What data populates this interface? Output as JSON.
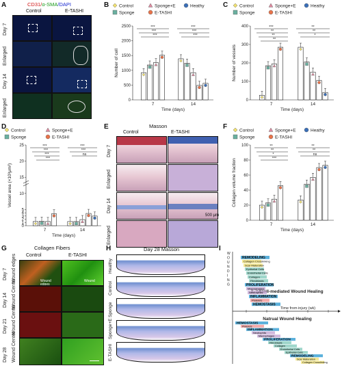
{
  "panels": {
    "A": "A",
    "B": "B",
    "C": "C",
    "D": "D",
    "E": "E",
    "F": "F",
    "G": "G",
    "H": "H",
    "I": "I"
  },
  "A": {
    "title_parts": [
      "CD31/",
      "α-SMA",
      "/DAPI"
    ],
    "title_colors": [
      "#d11a1a",
      "#1a9a1a",
      "#1a2ad1"
    ],
    "columns": [
      "Control",
      "E-TASHI"
    ],
    "rows": [
      "Day 7",
      "Enlarged",
      "Day 14",
      "Enlarged"
    ]
  },
  "legend3": {
    "items": [
      {
        "label": "Control",
        "marker": "diamond",
        "color": "#f0e070"
      },
      {
        "label": "Sponge+E",
        "marker": "triangle",
        "color": "#e08aa0"
      },
      {
        "label": "Heathy",
        "marker": "circle",
        "color": "#3a6fb8"
      },
      {
        "label": "Sponge",
        "marker": "square",
        "color": "#6ab0a0"
      },
      {
        "label": "E-TASHI",
        "marker": "circle",
        "color": "#e8734a"
      }
    ]
  },
  "legend2": {
    "items": [
      {
        "label": "Control",
        "marker": "diamond",
        "color": "#f0e070"
      },
      {
        "label": "Sponge+E",
        "marker": "triangle",
        "color": "#e08aa0"
      },
      {
        "label": "Sponge",
        "marker": "square",
        "color": "#6ab0a0"
      },
      {
        "label": "E-TASHI",
        "marker": "circle",
        "color": "#e8734a"
      }
    ]
  },
  "chart_data": [
    {
      "panel": "B",
      "type": "bar",
      "xlabel": "Time (days)",
      "ylabel": "Number of cell",
      "categories": [
        "7",
        "14"
      ],
      "ylim": [
        0,
        2500
      ],
      "yticks": [
        0,
        500,
        1000,
        1500,
        2000,
        2500
      ],
      "series": [
        {
          "name": "Control",
          "values": [
            920,
            1390
          ]
        },
        {
          "name": "Sponge",
          "values": [
            1180,
            1240
          ]
        },
        {
          "name": "Sponge+E",
          "values": [
            1260,
            920
          ]
        },
        {
          "name": "E-TASHI",
          "values": [
            1510,
            490
          ]
        },
        {
          "name": "Heathy",
          "values": [
            null,
            560
          ]
        }
      ],
      "sig_labels": [
        "***",
        "***",
        "***",
        "***",
        "***",
        "***"
      ]
    },
    {
      "panel": "C",
      "type": "bar",
      "xlabel": "Time (days)",
      "ylabel": "Number of vessels",
      "categories": [
        "7",
        "14"
      ],
      "ylim": [
        0,
        400
      ],
      "yticks": [
        0,
        100,
        200,
        300,
        400
      ],
      "series": [
        {
          "name": "Control",
          "values": [
            25,
            285
          ]
        },
        {
          "name": "Sponge",
          "values": [
            185,
            205
          ]
        },
        {
          "name": "Sponge+E",
          "values": [
            195,
            150
          ]
        },
        {
          "name": "E-TASHI",
          "values": [
            285,
            105
          ]
        },
        {
          "name": "Heathy",
          "values": [
            null,
            40
          ]
        }
      ],
      "sig_labels": [
        "***",
        "**",
        "**",
        "**",
        "**",
        "**",
        "*"
      ]
    },
    {
      "panel": "D",
      "type": "bar",
      "xlabel": "Time (days)",
      "ylabel": "Vessel area (×10³μm²)",
      "categories": [
        "7",
        "14"
      ],
      "ylim": [
        0,
        25
      ],
      "yticks": [
        0,
        1,
        2,
        3,
        4,
        5,
        10,
        15,
        20,
        25
      ],
      "series": [
        {
          "name": "Control",
          "values": [
            1.3,
            1.3
          ]
        },
        {
          "name": "Sponge",
          "values": [
            1.4,
            1.3
          ]
        },
        {
          "name": "Sponge+E",
          "values": [
            1.3,
            1.9
          ]
        },
        {
          "name": "E-TASHI",
          "values": [
            3.7,
            3.8
          ]
        },
        {
          "name": "Heathy",
          "values": [
            null,
            3.0
          ]
        }
      ],
      "sig_labels": [
        "***",
        "***",
        "***",
        "***",
        "***",
        "***",
        "ns"
      ]
    },
    {
      "panel": "F",
      "type": "bar",
      "xlabel": "Time (days)",
      "ylabel": "Collagen volume fraction",
      "categories": [
        "7",
        "14"
      ],
      "ylim": [
        0,
        100
      ],
      "yticks": [
        0,
        20,
        40,
        60,
        80,
        100
      ],
      "series": [
        {
          "name": "Control",
          "values": [
            20,
            27
          ]
        },
        {
          "name": "Sponge",
          "values": [
            23,
            48
          ]
        },
        {
          "name": "Sponge+E",
          "values": [
            28,
            57
          ]
        },
        {
          "name": "E-TASHI",
          "values": [
            46,
            70
          ]
        },
        {
          "name": "Heathy",
          "values": [
            null,
            73
          ]
        }
      ],
      "sig_labels": [
        "**",
        "**",
        "*",
        "***",
        "**",
        "**",
        "ns"
      ]
    }
  ],
  "E": {
    "title": "Masson",
    "columns": [
      "Control",
      "E-TASHI"
    ],
    "rows": [
      "Day 7",
      "Enlarged",
      "Day 14",
      "Enlarged"
    ],
    "scale": "500 μm"
  },
  "G": {
    "title": "Collagen Fibers",
    "columns": [
      "Control",
      "E-TASHI"
    ],
    "rows": [
      "Day 7",
      "Day 14",
      "Day 21",
      "Day 28"
    ],
    "side_labels": [
      "Wound edges",
      "Wound Center",
      "Wound Center",
      "Wound Center"
    ],
    "inner_labels": [
      "Wound edges",
      "Wound",
      "Wound"
    ]
  },
  "H": {
    "title": "Day 28 Masson",
    "rows": [
      "Healthy",
      "Control",
      "Sponge",
      "Sponge+E",
      "E-TASHI"
    ]
  },
  "I": {
    "axis_letters": "WOUNDING",
    "top_phases": [
      {
        "label": "REMODELING",
        "color": "#4aa8d8",
        "bold": true
      },
      {
        "label": "Collagen Crosslinking",
        "color": "#f0e070"
      },
      {
        "label": "Scar Maturation",
        "color": "#f0e070"
      },
      {
        "label": "Epithelial Cells",
        "color": "#7ec8b8"
      },
      {
        "label": "Endothelial Cells",
        "color": "#7ec8b8"
      },
      {
        "label": "Collagen",
        "color": "#7ec8b8"
      },
      {
        "label": "Fibroblasts",
        "color": "#7ec8b8"
      },
      {
        "label": "PROLIFERATION",
        "color": "#4aa8d8",
        "bold": true
      },
      {
        "label": "Macrophages",
        "color": "#c0a0d0"
      },
      {
        "label": "Neutrophils",
        "color": "#c0a0d0"
      },
      {
        "label": "INFLAMMATION",
        "color": "#4aa8d8",
        "bold": true
      },
      {
        "label": "Platelets",
        "color": "#f09090"
      },
      {
        "label": "HEMOSTASIS",
        "color": "#4aa8d8",
        "bold": true
      }
    ],
    "top_caption": "E-TASHI-mediated Wound Healing",
    "axis_caption": "Time from injury (wk)",
    "bottom_caption": "Natrual Wound Healing",
    "bottom_phases": [
      {
        "label": "HEMOSTASIS",
        "color": "#4aa8d8",
        "bold": true
      },
      {
        "label": "Platelets",
        "color": "#f09090"
      },
      {
        "label": "INFLAMMATION",
        "color": "#4aa8d8",
        "bold": true
      },
      {
        "label": "Neutrophils",
        "color": "#c0a0d0"
      },
      {
        "label": "Macrophages",
        "color": "#c0a0d0"
      },
      {
        "label": "PROLIFERATION",
        "color": "#4aa8d8",
        "bold": true
      },
      {
        "label": "Fibroblasts",
        "color": "#7ec8b8"
      },
      {
        "label": "Collagen",
        "color": "#7ec8b8"
      },
      {
        "label": "Endothelial Cells",
        "color": "#7ec8b8"
      },
      {
        "label": "Epithelial Cells",
        "color": "#7ec8b8"
      },
      {
        "label": "REMODELING",
        "color": "#4aa8d8",
        "bold": true
      },
      {
        "label": "Scar Maturation",
        "color": "#f0e070"
      },
      {
        "label": "Collagen Crosslinking",
        "color": "#f0e070"
      }
    ]
  }
}
